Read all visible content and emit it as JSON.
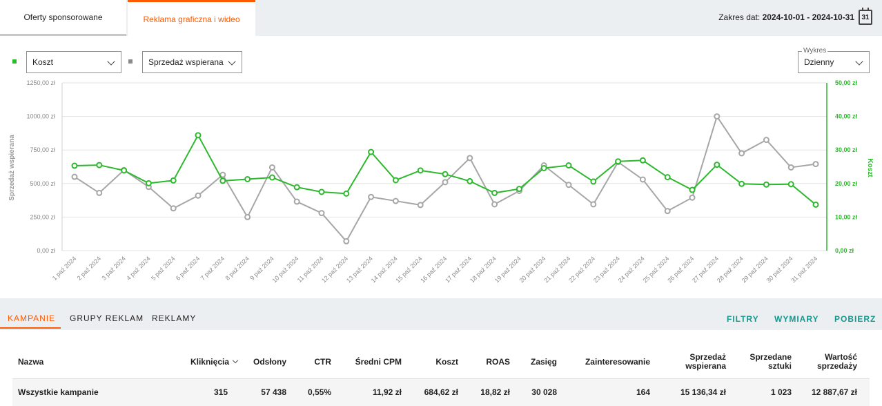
{
  "tabs": [
    "Oferty sponsorowane",
    "Reklama graficzna i wideo"
  ],
  "date_range": {
    "label": "Zakres dat:",
    "value": "2024-10-01 - 2024-10-31",
    "calendar_day": "31"
  },
  "controls": {
    "metric1": "Koszt",
    "metric2": "Sprzedaż wspierana",
    "chart_label": "Wykres",
    "chart_value": "Dzienny"
  },
  "colors": {
    "cost": "#2db82d",
    "sales": "#a6a6a6",
    "accent": "#ff5a00",
    "link": "#11998e"
  },
  "chart_data": {
    "type": "line",
    "categories": [
      "1 paź 2024",
      "2 paź 2024",
      "3 paź 2024",
      "4 paź 2024",
      "5 paź 2024",
      "6 paź 2024",
      "7 paź 2024",
      "8 paź 2024",
      "9 paź 2024",
      "10 paź 2024",
      "11 paź 2024",
      "12 paź 2024",
      "13 paź 2024",
      "14 paź 2024",
      "15 paź 2024",
      "16 paź 2024",
      "17 paź 2024",
      "18 paź 2024",
      "19 paź 2024",
      "20 paź 2024",
      "21 paź 2024",
      "22 paź 2024",
      "23 paź 2024",
      "24 paź 2024",
      "25 paź 2024",
      "26 paź 2024",
      "27 paź 2024",
      "28 paź 2024",
      "29 paź 2024",
      "30 paź 2024",
      "31 paź 2024"
    ],
    "series": [
      {
        "name": "Sprzedaż wspierana",
        "axis": "left",
        "values": [
          550,
          430,
          600,
          475,
          315,
          410,
          565,
          250,
          620,
          365,
          280,
          70,
          400,
          370,
          340,
          510,
          690,
          345,
          445,
          635,
          490,
          345,
          660,
          530,
          295,
          395,
          1000,
          725,
          825,
          620,
          645
        ]
      },
      {
        "name": "Koszt",
        "axis": "right",
        "values": [
          25.3,
          25.5,
          23.9,
          20.1,
          20.9,
          34.4,
          20.8,
          21.3,
          21.8,
          18.9,
          17.5,
          17.0,
          29.4,
          21.0,
          23.9,
          22.8,
          20.7,
          17.2,
          18.4,
          24.6,
          25.4,
          20.6,
          26.6,
          26.9,
          21.9,
          18.1,
          25.6,
          19.9,
          19.7,
          19.8,
          13.7
        ]
      }
    ],
    "ylabel": "Sprzedaż wspierana",
    "y2label": "Koszt",
    "ylim": [
      0,
      1250
    ],
    "y2lim": [
      0,
      50
    ],
    "yticks": [
      "0,00 zł",
      "250,00 zł",
      "500,00 zł",
      "750,00 zł",
      "1000,00 zł",
      "1250,00 zł"
    ],
    "y2ticks": [
      "0,00 zł",
      "10,00 zł",
      "20,00 zł",
      "30,00 zł",
      "40,00 zł",
      "50,00 zł"
    ],
    "grid": true
  },
  "lower_tabs": [
    "KAMPANIE",
    "GRUPY REKLAM",
    "REKLAMY"
  ],
  "actions": [
    "FILTRY",
    "WYMIARY",
    "POBIERZ"
  ],
  "table": {
    "headers": [
      "Nazwa",
      "Kliknięcia",
      "Odsłony",
      "CTR",
      "Średni CPM",
      "Koszt",
      "ROAS",
      "Zasięg",
      "Zainteresowanie",
      "Sprzedaż wspierana",
      "Sprzedane sztuki",
      "Wartość sprzedaży"
    ],
    "row": [
      "Wszystkie kampanie",
      "315",
      "57 438",
      "0,55%",
      "11,92 zł",
      "684,62 zł",
      "18,82 zł",
      "30 028",
      "164",
      "15 136,34 zł",
      "1 023",
      "12 887,67 zł"
    ]
  }
}
